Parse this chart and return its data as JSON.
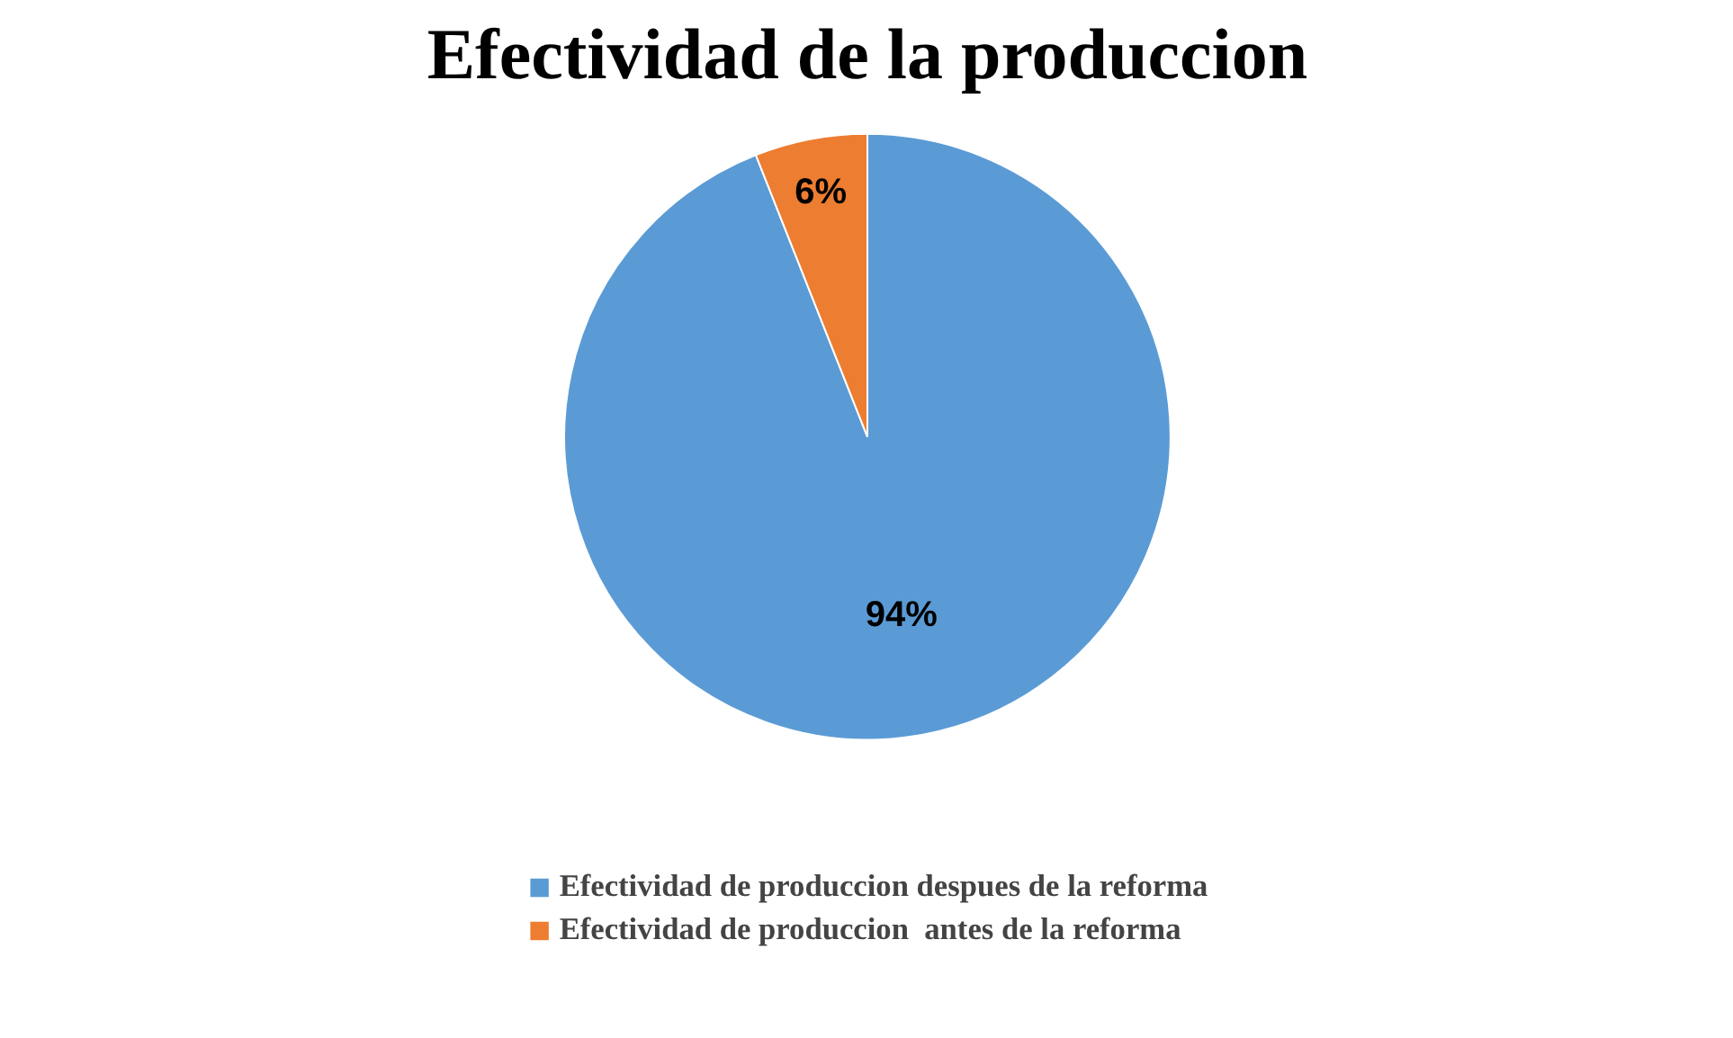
{
  "chart_data": {
    "type": "pie",
    "title": "Efectividad de la produccion",
    "categories": [
      "Efectividad de produccion despues de la reforma",
      "Efectividad de produccion  antes de la reforma"
    ],
    "values": [
      94,
      6
    ],
    "colors": [
      "#5b9bd5",
      "#ed7d31"
    ],
    "value_labels": [
      "94%",
      "6%"
    ],
    "legend": "bottom"
  }
}
